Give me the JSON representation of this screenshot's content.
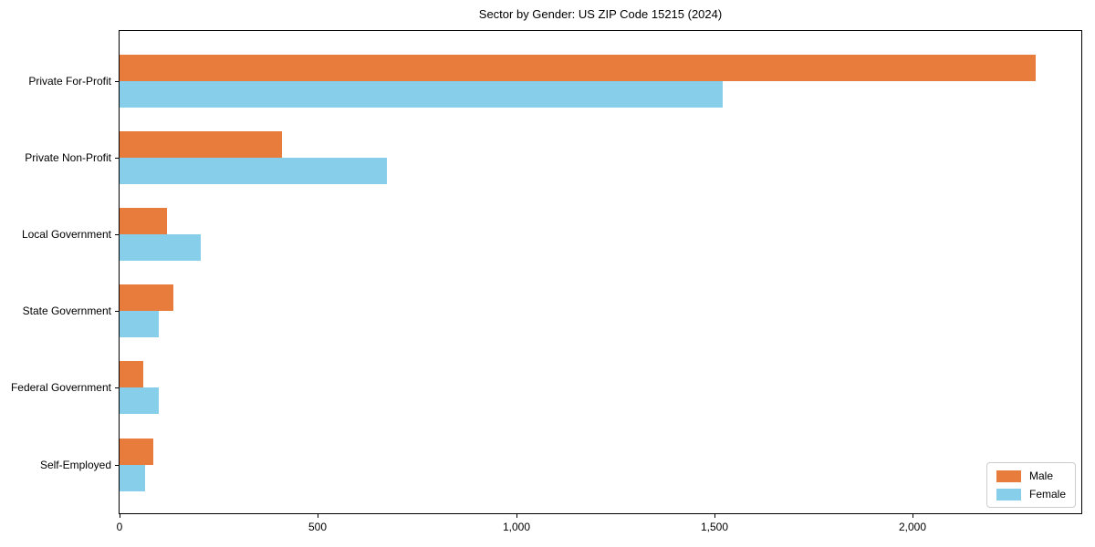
{
  "chart_data": {
    "type": "bar",
    "orientation": "horizontal",
    "title": "Sector by Gender: US ZIP Code 15215 (2024)",
    "categories": [
      "Private For-Profit",
      "Private Non-Profit",
      "Local Government",
      "State Government",
      "Federal Government",
      "Self-Employed"
    ],
    "series": [
      {
        "name": "Male",
        "color": "#e77c3c",
        "values": [
          2310,
          410,
          120,
          135,
          60,
          85
        ]
      },
      {
        "name": "Female",
        "color": "#87ceeb",
        "values": [
          1520,
          675,
          205,
          100,
          100,
          65
        ]
      }
    ],
    "xlabel": "",
    "ylabel": "",
    "xlim": [
      0,
      2425
    ],
    "xticks": [
      0,
      500,
      1000,
      1500,
      2000
    ],
    "xtick_labels": [
      "0",
      "500",
      "1,000",
      "1,500",
      "2,000"
    ],
    "grid": false,
    "legend": {
      "position": "lower right",
      "labels": [
        "Male",
        "Female"
      ]
    }
  }
}
